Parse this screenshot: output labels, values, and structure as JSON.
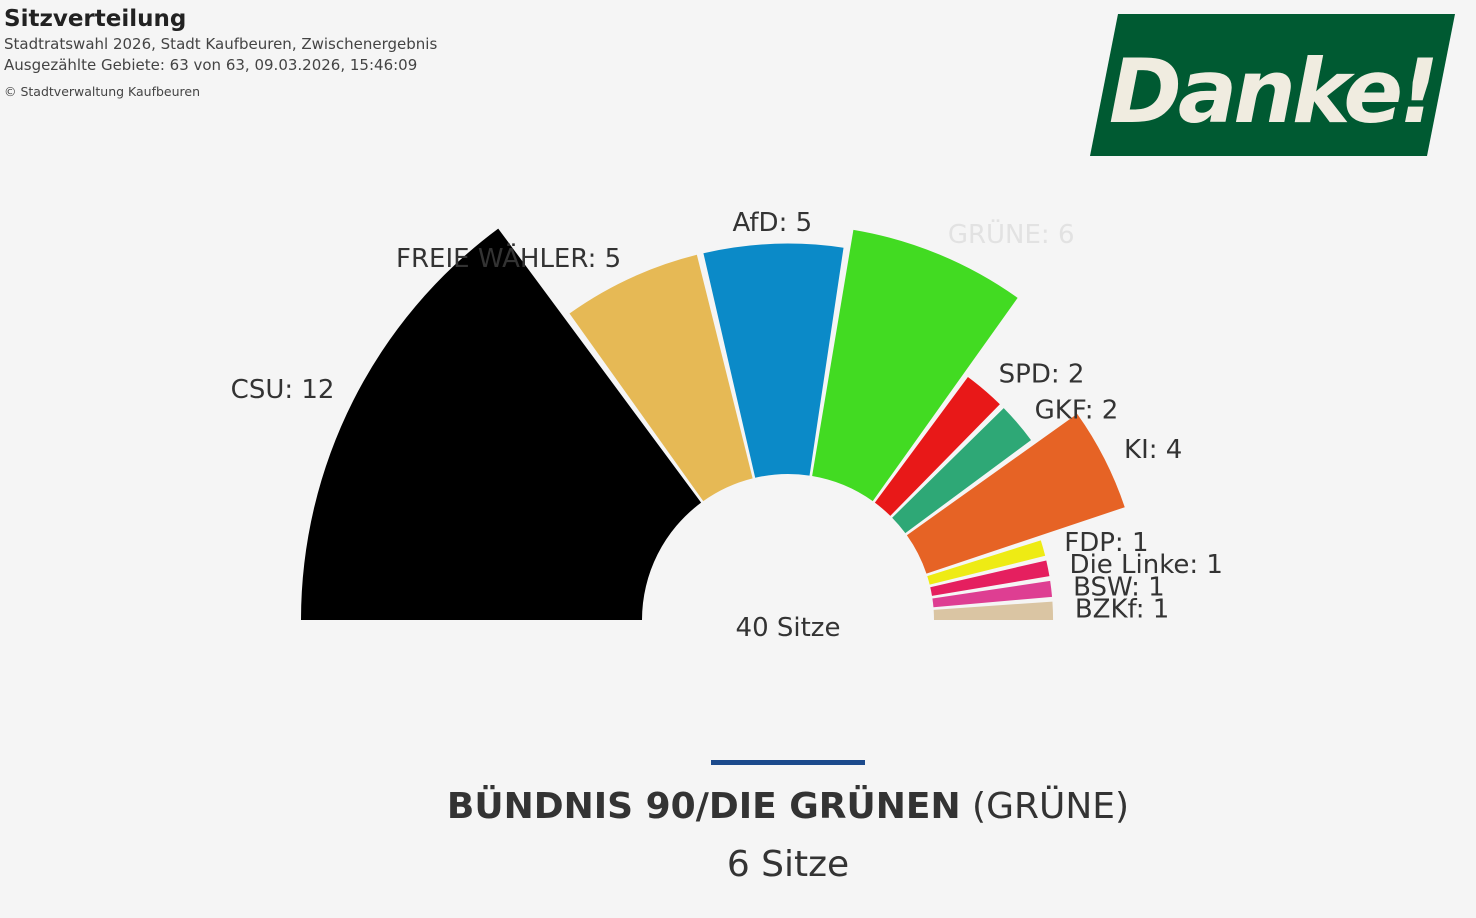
{
  "header": {
    "title": "Sitzverteilung",
    "subtitle": "Stadtratswahl 2026, Stadt Kaufbeuren, Zwischenergebnis",
    "status": "Ausgezählte Gebiete: 63 von 63, 09.03.2026, 15:46:09",
    "copyright": "© Stadtverwaltung Kaufbeuren"
  },
  "banner": {
    "text": "Danke!",
    "bg_color": "#005a32",
    "text_color": "#f0ece0"
  },
  "chart_data": {
    "type": "pie",
    "subtype": "parliament-semicircle",
    "total_label": "40 Sitze",
    "total_seats": 40,
    "series": [
      {
        "name": "CSU",
        "label": "CSU: 12",
        "value": 12,
        "color": "#000000"
      },
      {
        "name": "FREIE WÄHLER",
        "label": "FREIE WÄHLER: 5",
        "value": 5,
        "color": "#e6b955"
      },
      {
        "name": "AfD",
        "label": "AfD: 5",
        "value": 5,
        "color": "#0b8ac8"
      },
      {
        "name": "GRÜNE",
        "label": "GRÜNE: 6",
        "value": 6,
        "color": "#42db22",
        "highlighted": true
      },
      {
        "name": "SPD",
        "label": "SPD: 2",
        "value": 2,
        "color": "#e81818"
      },
      {
        "name": "GKF",
        "label": "GKF: 2",
        "value": 2,
        "color": "#2ea876"
      },
      {
        "name": "KI",
        "label": "KI: 4",
        "value": 4,
        "color": "#e66325"
      },
      {
        "name": "FDP",
        "label": "FDP: 1",
        "value": 1,
        "color": "#eeeb14"
      },
      {
        "name": "Die Linke",
        "label": "Die Linke: 1",
        "value": 1,
        "color": "#e51f5f"
      },
      {
        "name": "BSW",
        "label": "BSW: 1",
        "value": 1,
        "color": "#de3e92"
      },
      {
        "name": "BZKf",
        "label": "BZKf: 1",
        "value": 1,
        "color": "#dac5a3"
      }
    ]
  },
  "detail": {
    "name": "BÜNDNIS 90/DIE GRÜNEN",
    "abbr": "(GRÜNE)",
    "seats": "6 Sitze",
    "divider_color": "#1c4a8c"
  }
}
